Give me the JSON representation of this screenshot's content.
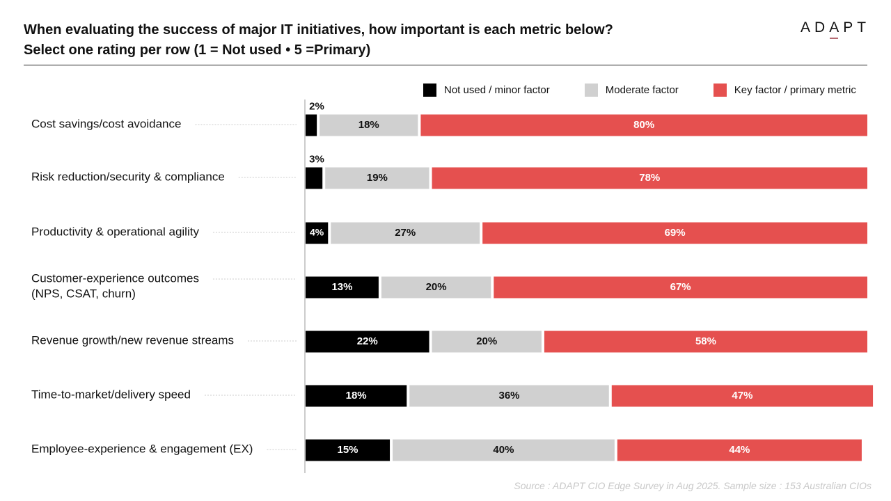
{
  "header": {
    "title_line1": "When evaluating the success of major IT initiatives, how important is each metric below?",
    "title_line2": "Select one rating per row (1 = Not used • 5 =Primary)",
    "logo": {
      "pre": "AD",
      "accent": "A",
      "post": "PT",
      "accent_color": "#b56a72"
    }
  },
  "source": "Source : ADAPT CIO Edge Survey in Aug 2025. Sample size : 153 Australian CIOs",
  "chart_data": {
    "type": "bar",
    "orientation": "horizontal",
    "stacked": true,
    "title": "When evaluating the success of major IT initiatives, how important is each metric below?",
    "subtitle": "Select one rating per row (1 = Not used • 5 =Primary)",
    "xlabel": "",
    "ylabel": "",
    "unit": "%",
    "xlim": [
      0,
      100
    ],
    "grid": false,
    "legend_position": "top-right",
    "categories": [
      [
        "Cost savings/cost avoidance"
      ],
      [
        "Risk reduction/security & compliance"
      ],
      [
        "Productivity & operational agility"
      ],
      [
        "Customer-experience outcomes",
        "(NPS, CSAT, churn)"
      ],
      [
        "Revenue growth/new revenue streams"
      ],
      [
        "Time-to-market/delivery speed"
      ],
      [
        "Employee-experience & engagement (EX)"
      ]
    ],
    "series": [
      {
        "name": "Not used / minor factor",
        "color": "#000000",
        "label_color": "#ffffff",
        "values": [
          2,
          3,
          4,
          13,
          22,
          18,
          15
        ]
      },
      {
        "name": "Moderate factor",
        "color": "#d0d0d0",
        "label_color": "#111111",
        "values": [
          18,
          19,
          27,
          20,
          20,
          36,
          40
        ]
      },
      {
        "name": "Key factor / primary metric",
        "color": "#e5504f",
        "label_color": "#ffffff",
        "values": [
          80,
          78,
          69,
          67,
          58,
          47,
          44
        ]
      }
    ]
  }
}
